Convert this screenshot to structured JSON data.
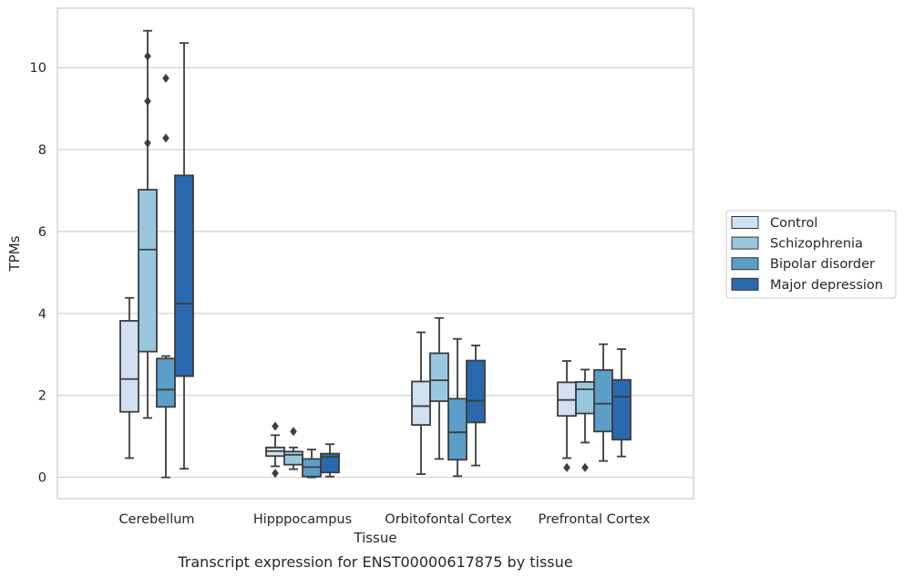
{
  "chart_data": {
    "type": "box",
    "caption": "Transcript expression for ENST00000617875 by tissue",
    "xlabel": "Tissue",
    "ylabel": "TPMs",
    "ylim": [
      -0.52,
      11.45
    ],
    "yticks": [
      0,
      2,
      4,
      6,
      8,
      10
    ],
    "grid": "horizontal",
    "legend_position": "right",
    "categories": [
      "Cerebellum",
      "Hipppocampus",
      "Orbitofontal Cortex",
      "Prefrontal Cortex"
    ],
    "series": [
      {
        "name": "Control",
        "color": "#d1e1f1",
        "boxes": [
          {
            "whislo": 0.47,
            "q1": 1.6,
            "med": 2.4,
            "q3": 3.82,
            "whishi": 4.38,
            "fliers": []
          },
          {
            "whislo": 0.27,
            "q1": 0.52,
            "med": 0.64,
            "q3": 0.73,
            "whishi": 1.03,
            "fliers": [
              1.25,
              0.1
            ]
          },
          {
            "whislo": 0.08,
            "q1": 1.28,
            "med": 1.74,
            "q3": 2.34,
            "whishi": 3.54,
            "fliers": []
          },
          {
            "whislo": 0.47,
            "q1": 1.5,
            "med": 1.89,
            "q3": 2.32,
            "whishi": 2.84,
            "fliers": [
              0.24
            ]
          }
        ]
      },
      {
        "name": "Schizophrenia",
        "color": "#9ac7e0",
        "boxes": [
          {
            "whislo": 1.45,
            "q1": 3.07,
            "med": 5.56,
            "q3": 7.02,
            "whishi": 10.9,
            "fliers": [
              10.28,
              9.18,
              8.16
            ]
          },
          {
            "whislo": 0.2,
            "q1": 0.31,
            "med": 0.55,
            "q3": 0.63,
            "whishi": 0.73,
            "fliers": [
              1.12
            ]
          },
          {
            "whislo": 0.45,
            "q1": 1.86,
            "med": 2.37,
            "q3": 3.03,
            "whishi": 3.89,
            "fliers": []
          },
          {
            "whislo": 0.85,
            "q1": 1.56,
            "med": 2.15,
            "q3": 2.33,
            "whishi": 2.63,
            "fliers": [
              0.24
            ]
          }
        ]
      },
      {
        "name": "Bipolar disorder",
        "color": "#5b9ec9",
        "boxes": [
          {
            "whislo": 0.0,
            "q1": 1.72,
            "med": 2.14,
            "q3": 2.9,
            "whishi": 2.96,
            "fliers": [
              9.74,
              8.28
            ]
          },
          {
            "whislo": 0.0,
            "q1": 0.02,
            "med": 0.25,
            "q3": 0.45,
            "whishi": 0.68,
            "fliers": []
          },
          {
            "whislo": 0.03,
            "q1": 0.43,
            "med": 1.1,
            "q3": 1.92,
            "whishi": 3.38,
            "fliers": []
          },
          {
            "whislo": 0.4,
            "q1": 1.12,
            "med": 1.8,
            "q3": 2.62,
            "whishi": 3.25,
            "fliers": []
          }
        ]
      },
      {
        "name": "Major depression",
        "color": "#2a69ae",
        "boxes": [
          {
            "whislo": 0.21,
            "q1": 2.47,
            "med": 4.24,
            "q3": 7.37,
            "whishi": 10.6,
            "fliers": []
          },
          {
            "whislo": 0.02,
            "q1": 0.12,
            "med": 0.5,
            "q3": 0.58,
            "whishi": 0.81,
            "fliers": []
          },
          {
            "whislo": 0.29,
            "q1": 1.34,
            "med": 1.87,
            "q3": 2.85,
            "whishi": 3.22,
            "fliers": []
          },
          {
            "whislo": 0.51,
            "q1": 0.92,
            "med": 1.97,
            "q3": 2.38,
            "whishi": 3.13,
            "fliers": []
          }
        ]
      }
    ]
  }
}
